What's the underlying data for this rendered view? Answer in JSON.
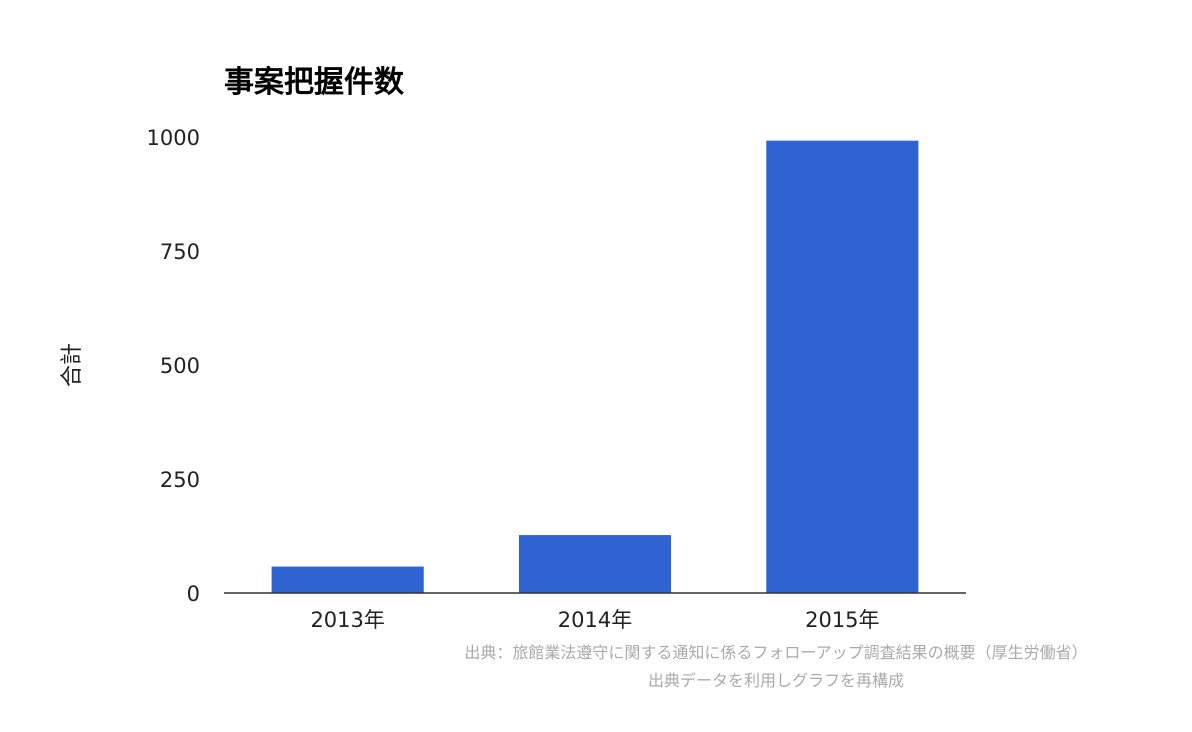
{
  "chart_data": {
    "type": "bar",
    "title": "事案把握件数",
    "xlabel": "",
    "ylabel": "合計",
    "categories": [
      "2013年",
      "2014年",
      "2015年"
    ],
    "values": [
      58,
      127,
      992
    ],
    "ylim": [
      0,
      1000
    ],
    "yticks": [
      0,
      250,
      500,
      750,
      1000
    ],
    "grid": false,
    "legend": "none",
    "bar_color": "#2f63d1"
  },
  "source_note": {
    "line1": "出典：旅館業法遵守に関する通知に係るフォローアップ調査結果の概要（厚生労働省）",
    "line2": "出典データを利用しグラフを再構成"
  }
}
